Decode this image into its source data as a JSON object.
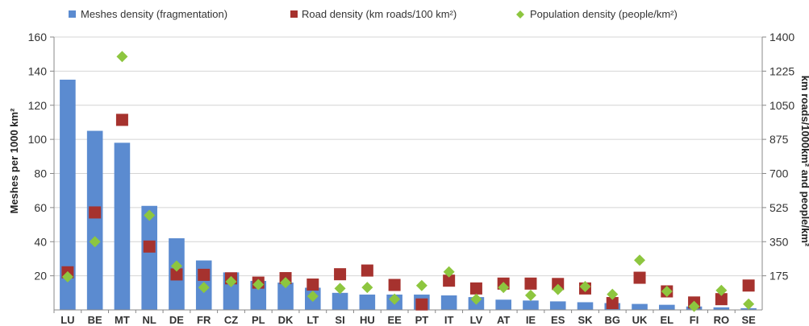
{
  "chart_data": {
    "type": "bar",
    "categories": [
      "LU",
      "BE",
      "MT",
      "NL",
      "DE",
      "FR",
      "CZ",
      "PL",
      "DK",
      "LT",
      "SI",
      "HU",
      "EE",
      "PT",
      "IT",
      "LV",
      "AT",
      "IE",
      "ES",
      "SK",
      "BG",
      "UK",
      "EL",
      "FI",
      "RO",
      "SE"
    ],
    "series": [
      {
        "name": "Meshes density (fragmentation)",
        "type": "bar",
        "axis": "left",
        "color": "#5B8BD0",
        "values": [
          135,
          105,
          98,
          61,
          42,
          29,
          22,
          17,
          16,
          13,
          10,
          9,
          9,
          9,
          8.5,
          7.5,
          6,
          5.5,
          5,
          4.5,
          4,
          3.5,
          3,
          2,
          1.5,
          1
        ]
      },
      {
        "name": "Road density (km roads/100 km²)",
        "type": "scatter",
        "marker": "square",
        "axis": "right",
        "color": "#A6322E",
        "values": [
          193,
          500,
          975,
          325,
          182,
          180,
          162,
          140,
          163,
          130,
          183,
          202,
          128,
          28,
          150,
          110,
          135,
          135,
          133,
          110,
          35,
          165,
          95,
          38,
          55,
          125
        ]
      },
      {
        "name": "Population density (people/km²)",
        "type": "scatter",
        "marker": "diamond",
        "axis": "right",
        "color": "#8DC63F",
        "values": [
          170,
          350,
          1300,
          485,
          225,
          115,
          145,
          130,
          140,
          70,
          110,
          115,
          55,
          125,
          195,
          55,
          115,
          75,
          105,
          120,
          80,
          255,
          95,
          18,
          100,
          30
        ]
      }
    ],
    "ylabel": "Meshes per 1000 km²",
    "ylabel_right": "km roads/1000km² and people/km²",
    "ylim": [
      0,
      160
    ],
    "ylim_right": [
      0,
      1400
    ],
    "yticks": [
      "20",
      "40",
      "60",
      "80",
      "100",
      "120",
      "140",
      "160"
    ],
    "yticks_right": [
      "175",
      "350",
      "525",
      "700",
      "875",
      "1050",
      "1225",
      "1400"
    ],
    "grid": true,
    "legend_position": "top"
  }
}
